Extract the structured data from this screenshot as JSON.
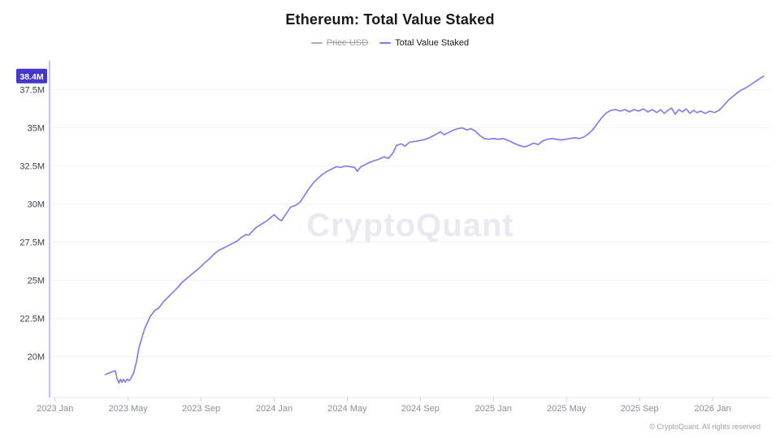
{
  "header": {
    "title": "Ethereum: Total Value Staked"
  },
  "legend": {
    "items": [
      {
        "label": "Price USD",
        "color": "#a9adb4",
        "disabled": true
      },
      {
        "label": "Total Value Staked",
        "color": "#8276ef",
        "disabled": false
      }
    ]
  },
  "watermark": "CryptoQuant",
  "footer": {
    "copyright": "© CryptoQuant. All rights reserved"
  },
  "chart_data": {
    "type": "line",
    "title": "Ethereum: Total Value Staked",
    "x_unit": "months since 2023-01",
    "xlim": [
      -0.3,
      39.2
    ],
    "ylim": [
      17.3,
      39.4
    ],
    "grid": "horizontal",
    "legend_position": "top",
    "last_value": {
      "value": 38.4,
      "label": "38.4M"
    },
    "colors": {
      "series_line": "#8276ef",
      "axis_line": "#b3a8f1",
      "x_axis_line": "#e7e8ea",
      "tick": "#cbd0d5",
      "gridline": "#f2f2f6",
      "badge_bg": "#4636cd",
      "badge_text": "#ffffff",
      "y_label": "#3e434a",
      "x_label": "#8a8f98"
    },
    "yticks": [
      {
        "v": 37.5,
        "label": "37.5M"
      },
      {
        "v": 35,
        "label": "35M"
      },
      {
        "v": 32.5,
        "label": "32.5M"
      },
      {
        "v": 30,
        "label": "30M"
      },
      {
        "v": 27.5,
        "label": "27.5M"
      },
      {
        "v": 25,
        "label": "25M"
      },
      {
        "v": 22.5,
        "label": "22.5M"
      },
      {
        "v": 20,
        "label": "20M"
      }
    ],
    "xticks": [
      {
        "m": 0,
        "label": "2023 Jan"
      },
      {
        "m": 4,
        "label": "2023 May"
      },
      {
        "m": 8,
        "label": "2023 Sep"
      },
      {
        "m": 12,
        "label": "2024 Jan"
      },
      {
        "m": 16,
        "label": "2024 May"
      },
      {
        "m": 20,
        "label": "2024 Sep"
      },
      {
        "m": 24,
        "label": "2025 Jan"
      },
      {
        "m": 28,
        "label": "2025 May"
      },
      {
        "m": 32,
        "label": "2025 Sep"
      },
      {
        "m": 36,
        "label": "2026 Jan"
      }
    ],
    "series": [
      {
        "name": "Price USD",
        "visible": false,
        "points": []
      },
      {
        "name": "Total Value Staked",
        "visible": true,
        "color": "#8276ef",
        "points": [
          [
            2.75,
            18.8
          ],
          [
            2.95,
            18.9
          ],
          [
            3.15,
            19.0
          ],
          [
            3.3,
            19.05
          ],
          [
            3.4,
            18.5
          ],
          [
            3.5,
            18.25
          ],
          [
            3.58,
            18.5
          ],
          [
            3.66,
            18.3
          ],
          [
            3.75,
            18.5
          ],
          [
            3.85,
            18.3
          ],
          [
            3.95,
            18.5
          ],
          [
            4.05,
            18.4
          ],
          [
            4.15,
            18.55
          ],
          [
            4.3,
            18.9
          ],
          [
            4.45,
            19.6
          ],
          [
            4.6,
            20.6
          ],
          [
            4.75,
            21.2
          ],
          [
            4.9,
            21.8
          ],
          [
            5.05,
            22.2
          ],
          [
            5.2,
            22.6
          ],
          [
            5.45,
            23.0
          ],
          [
            5.7,
            23.2
          ],
          [
            5.95,
            23.6
          ],
          [
            6.2,
            23.9
          ],
          [
            6.45,
            24.2
          ],
          [
            6.7,
            24.5
          ],
          [
            6.95,
            24.85
          ],
          [
            7.2,
            25.1
          ],
          [
            7.45,
            25.35
          ],
          [
            7.7,
            25.6
          ],
          [
            7.95,
            25.85
          ],
          [
            8.2,
            26.15
          ],
          [
            8.45,
            26.4
          ],
          [
            8.7,
            26.7
          ],
          [
            8.95,
            26.95
          ],
          [
            9.2,
            27.1
          ],
          [
            9.45,
            27.25
          ],
          [
            9.7,
            27.4
          ],
          [
            9.95,
            27.55
          ],
          [
            10.2,
            27.8
          ],
          [
            10.45,
            28.0
          ],
          [
            10.6,
            27.95
          ],
          [
            10.8,
            28.2
          ],
          [
            11.0,
            28.45
          ],
          [
            11.2,
            28.6
          ],
          [
            11.4,
            28.75
          ],
          [
            11.6,
            28.9
          ],
          [
            11.8,
            29.1
          ],
          [
            12.0,
            29.3
          ],
          [
            12.2,
            29.05
          ],
          [
            12.4,
            28.9
          ],
          [
            12.65,
            29.35
          ],
          [
            12.9,
            29.8
          ],
          [
            13.15,
            29.9
          ],
          [
            13.4,
            30.1
          ],
          [
            13.65,
            30.55
          ],
          [
            13.9,
            31.0
          ],
          [
            14.15,
            31.4
          ],
          [
            14.4,
            31.7
          ],
          [
            14.65,
            31.95
          ],
          [
            14.9,
            32.15
          ],
          [
            15.15,
            32.3
          ],
          [
            15.4,
            32.45
          ],
          [
            15.65,
            32.4
          ],
          [
            15.9,
            32.5
          ],
          [
            16.15,
            32.45
          ],
          [
            16.4,
            32.4
          ],
          [
            16.55,
            32.15
          ],
          [
            16.75,
            32.45
          ],
          [
            17.0,
            32.6
          ],
          [
            17.25,
            32.75
          ],
          [
            17.5,
            32.85
          ],
          [
            17.75,
            32.95
          ],
          [
            18.0,
            33.1
          ],
          [
            18.25,
            33.0
          ],
          [
            18.5,
            33.35
          ],
          [
            18.7,
            33.85
          ],
          [
            18.95,
            33.95
          ],
          [
            19.15,
            33.8
          ],
          [
            19.4,
            34.05
          ],
          [
            19.65,
            34.1
          ],
          [
            19.9,
            34.15
          ],
          [
            20.15,
            34.2
          ],
          [
            20.4,
            34.3
          ],
          [
            20.65,
            34.45
          ],
          [
            20.9,
            34.6
          ],
          [
            21.1,
            34.75
          ],
          [
            21.3,
            34.55
          ],
          [
            21.55,
            34.7
          ],
          [
            21.8,
            34.85
          ],
          [
            22.05,
            34.95
          ],
          [
            22.3,
            35.0
          ],
          [
            22.55,
            34.85
          ],
          [
            22.75,
            34.95
          ],
          [
            23.0,
            34.8
          ],
          [
            23.25,
            34.5
          ],
          [
            23.5,
            34.3
          ],
          [
            23.75,
            34.25
          ],
          [
            24.0,
            34.3
          ],
          [
            24.25,
            34.25
          ],
          [
            24.55,
            34.3
          ],
          [
            24.85,
            34.15
          ],
          [
            25.1,
            34.0
          ],
          [
            25.4,
            33.85
          ],
          [
            25.7,
            33.75
          ],
          [
            25.95,
            33.85
          ],
          [
            26.2,
            34.0
          ],
          [
            26.45,
            33.9
          ],
          [
            26.7,
            34.15
          ],
          [
            26.95,
            34.25
          ],
          [
            27.2,
            34.3
          ],
          [
            27.45,
            34.25
          ],
          [
            27.7,
            34.2
          ],
          [
            27.95,
            34.25
          ],
          [
            28.2,
            34.3
          ],
          [
            28.45,
            34.35
          ],
          [
            28.7,
            34.3
          ],
          [
            28.95,
            34.4
          ],
          [
            29.2,
            34.6
          ],
          [
            29.45,
            34.9
          ],
          [
            29.7,
            35.3
          ],
          [
            29.95,
            35.7
          ],
          [
            30.2,
            36.0
          ],
          [
            30.45,
            36.15
          ],
          [
            30.7,
            36.2
          ],
          [
            30.95,
            36.1
          ],
          [
            31.2,
            36.2
          ],
          [
            31.45,
            36.05
          ],
          [
            31.7,
            36.2
          ],
          [
            31.95,
            36.1
          ],
          [
            32.2,
            36.25
          ],
          [
            32.45,
            36.05
          ],
          [
            32.7,
            36.2
          ],
          [
            32.95,
            36.0
          ],
          [
            33.15,
            36.2
          ],
          [
            33.35,
            35.95
          ],
          [
            33.55,
            36.15
          ],
          [
            33.75,
            36.3
          ],
          [
            33.95,
            35.9
          ],
          [
            34.15,
            36.2
          ],
          [
            34.35,
            36.05
          ],
          [
            34.55,
            36.25
          ],
          [
            34.75,
            35.95
          ],
          [
            34.95,
            36.15
          ],
          [
            35.15,
            36.0
          ],
          [
            35.35,
            36.1
          ],
          [
            35.6,
            35.95
          ],
          [
            35.85,
            36.1
          ],
          [
            36.1,
            36.0
          ],
          [
            36.35,
            36.15
          ],
          [
            36.6,
            36.45
          ],
          [
            36.85,
            36.8
          ],
          [
            37.1,
            37.05
          ],
          [
            37.35,
            37.3
          ],
          [
            37.6,
            37.5
          ],
          [
            37.85,
            37.65
          ],
          [
            38.1,
            37.85
          ],
          [
            38.35,
            38.05
          ],
          [
            38.6,
            38.25
          ],
          [
            38.8,
            38.4
          ]
        ]
      }
    ]
  }
}
